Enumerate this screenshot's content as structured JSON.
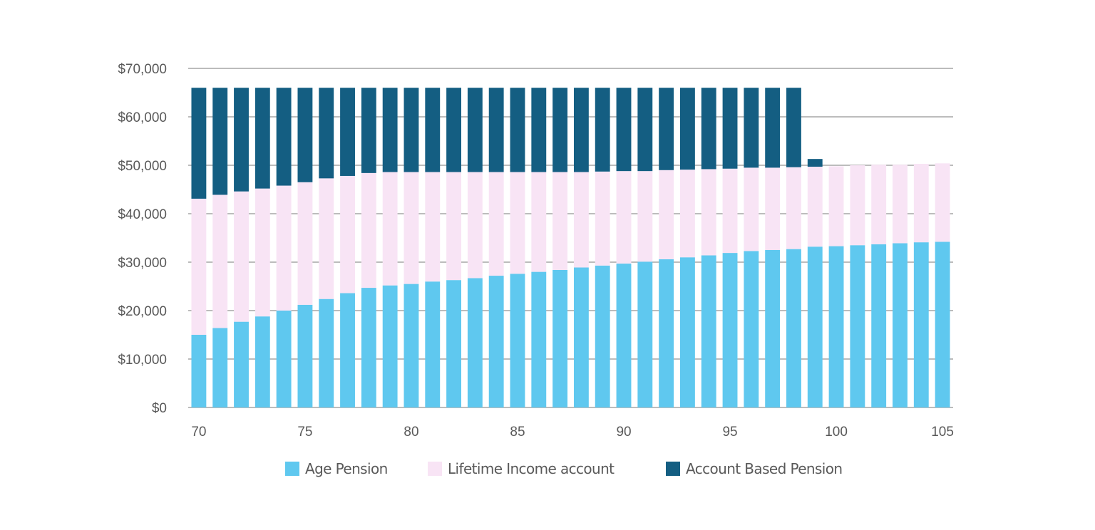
{
  "chart_data": {
    "type": "bar",
    "stacked": true,
    "title": "",
    "xlabel": "",
    "ylabel": "",
    "ylim": [
      0,
      70000
    ],
    "yticks": [
      0,
      10000,
      20000,
      30000,
      40000,
      50000,
      60000,
      70000
    ],
    "ytick_labels": [
      "$0",
      "$10,000",
      "$20,000",
      "$30,000",
      "$40,000",
      "$50,000",
      "$60,000",
      "$70,000"
    ],
    "grid": true,
    "x": [
      70,
      71,
      72,
      73,
      74,
      75,
      76,
      77,
      78,
      79,
      80,
      81,
      82,
      83,
      84,
      85,
      86,
      87,
      88,
      89,
      90,
      91,
      92,
      93,
      94,
      95,
      96,
      97,
      98,
      99,
      100,
      101,
      102,
      103,
      104,
      105
    ],
    "xtick_labels": [
      "70",
      "75",
      "80",
      "85",
      "90",
      "95",
      "100",
      "105"
    ],
    "xtick_values": [
      70,
      75,
      80,
      85,
      90,
      95,
      100,
      105
    ],
    "legend_position": "bottom",
    "series": [
      {
        "name": "Age Pension",
        "color": "#5FC8EF",
        "values": [
          15000,
          16400,
          17700,
          18800,
          20000,
          21200,
          22400,
          23600,
          24700,
          25200,
          25500,
          26000,
          26300,
          26700,
          27200,
          27600,
          28000,
          28400,
          28900,
          29300,
          29700,
          30100,
          30600,
          31000,
          31400,
          31900,
          32300,
          32500,
          32700,
          33200,
          33300,
          33500,
          33700,
          33900,
          34100,
          34200
        ]
      },
      {
        "name": "Lifetime Income account",
        "color": "#F8E4F5",
        "values": [
          28100,
          27500,
          26900,
          26400,
          25800,
          25300,
          24900,
          24200,
          23700,
          23400,
          23100,
          22600,
          22300,
          21900,
          21400,
          21000,
          20600,
          20200,
          19700,
          19400,
          19100,
          18700,
          18400,
          18100,
          17800,
          17400,
          17200,
          17000,
          16900,
          16500,
          16500,
          16500,
          16400,
          16200,
          16200,
          16200
        ]
      },
      {
        "name": "Account Based Pension",
        "color": "#145E82",
        "values": [
          22900,
          22100,
          21400,
          20800,
          20200,
          19500,
          18700,
          18200,
          17600,
          17400,
          17400,
          17400,
          17400,
          17400,
          17400,
          17400,
          17400,
          17400,
          17400,
          17300,
          17200,
          17200,
          17000,
          16900,
          16800,
          16700,
          16500,
          16500,
          16400,
          1600,
          0,
          0,
          0,
          0,
          0,
          0
        ]
      }
    ]
  },
  "colors": {
    "grid": "#A6A6A6",
    "text": "#595959"
  }
}
